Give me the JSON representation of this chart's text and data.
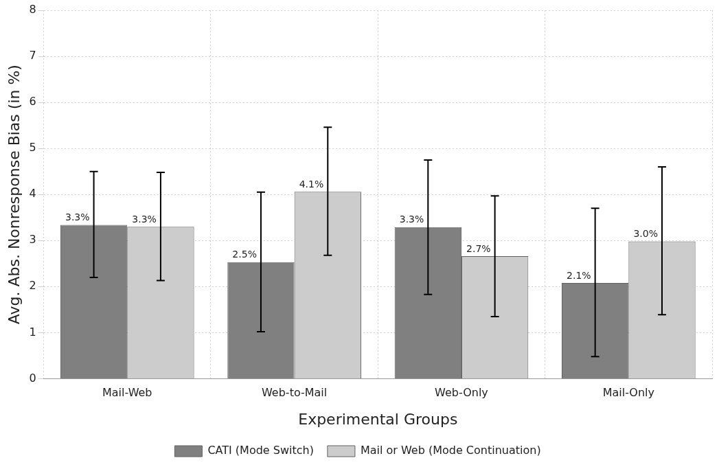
{
  "chart_data": {
    "type": "bar",
    "xlabel": "Experimental Groups",
    "ylabel": "Avg. Abs. Nonresponse Bias (in %)",
    "categories": [
      "Mail-Web",
      "Web-to-Mail",
      "Web-Only",
      "Mail-Only"
    ],
    "series": [
      {
        "name": "CATI (Mode Switch)",
        "color": "#808080",
        "values": [
          3.34,
          2.53,
          3.29,
          2.08
        ],
        "errors": [
          [
            2.2,
            4.5
          ],
          [
            1.02,
            4.05
          ],
          [
            1.83,
            4.75
          ],
          [
            0.48,
            3.7
          ]
        ],
        "value_labels": [
          "3.3%",
          "2.5%",
          "3.3%",
          "2.1%"
        ]
      },
      {
        "name": "Mail or Web (Mode Continuation)",
        "color": "#cccccc",
        "values": [
          3.3,
          4.06,
          2.66,
          2.98
        ],
        "errors": [
          [
            2.13,
            4.48
          ],
          [
            2.68,
            5.46
          ],
          [
            1.35,
            3.97
          ],
          [
            1.39,
            4.6
          ]
        ],
        "value_labels": [
          "3.3%",
          "4.1%",
          "2.7%",
          "3.0%"
        ]
      }
    ],
    "ylim": [
      0,
      8
    ],
    "yticks": [
      0,
      1,
      2,
      3,
      4,
      5,
      6,
      7,
      8
    ],
    "grid": true,
    "legend": "bottom"
  }
}
